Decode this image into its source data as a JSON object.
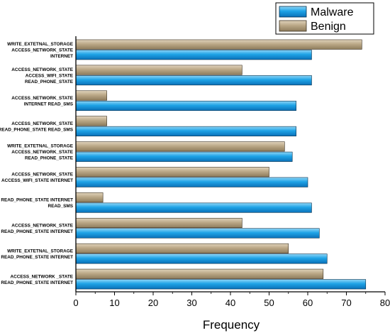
{
  "chart_data": {
    "type": "bar",
    "orientation": "horizontal",
    "xlabel": "Frequency",
    "ylabel": "",
    "xlim": [
      0,
      80
    ],
    "xticks": [
      0,
      10,
      20,
      30,
      40,
      50,
      60,
      70,
      80
    ],
    "grid": false,
    "legend_position": "top-right",
    "categories": [
      [
        "WRITE_EXTETNAL_STORAGE",
        "ACCESS_NETWORK_STATE",
        "INTERNET"
      ],
      [
        "ACCESS_NETWORK_STATE",
        "ACCESS_WIFI_STATE",
        "READ_PHONE_STATE"
      ],
      [
        "ACCESS_NETWORK_STATE",
        "INTERNET READ_SMS"
      ],
      [
        "ACCESS_NETWORK_STATE",
        "READ_PHONE_STATE READ_SMS"
      ],
      [
        "WRITE_EXTETNAL_STORAGE",
        "ACCESS_NETWORK_STATE",
        "READ_PHONE_STATE"
      ],
      [
        "ACCESS_NETWORK_STATE",
        "ACCESS_WIFI_STATE INTERNET"
      ],
      [
        "READ_PHONE_STATE INTERNET",
        "READ_SMS"
      ],
      [
        "ACCESS_NETWORK_STATE",
        "READ_PHONE_STATE INTERNET"
      ],
      [
        "WRITE_EXTETNAL_STORAGE",
        "READ_PHONE_STATE INTERNET"
      ],
      [
        "ACCESS_NETWORK _STATE",
        "READ_PHONE_STATE   INTERNET"
      ]
    ],
    "series": [
      {
        "name": "Malware",
        "color": "#1a9ee0",
        "values": [
          61,
          61,
          57,
          57,
          56,
          60,
          61,
          63,
          65,
          75
        ]
      },
      {
        "name": "Benign",
        "color": "#bdaa8a",
        "values": [
          74,
          43,
          8,
          8,
          54,
          50,
          7,
          43,
          55,
          64
        ]
      }
    ]
  }
}
